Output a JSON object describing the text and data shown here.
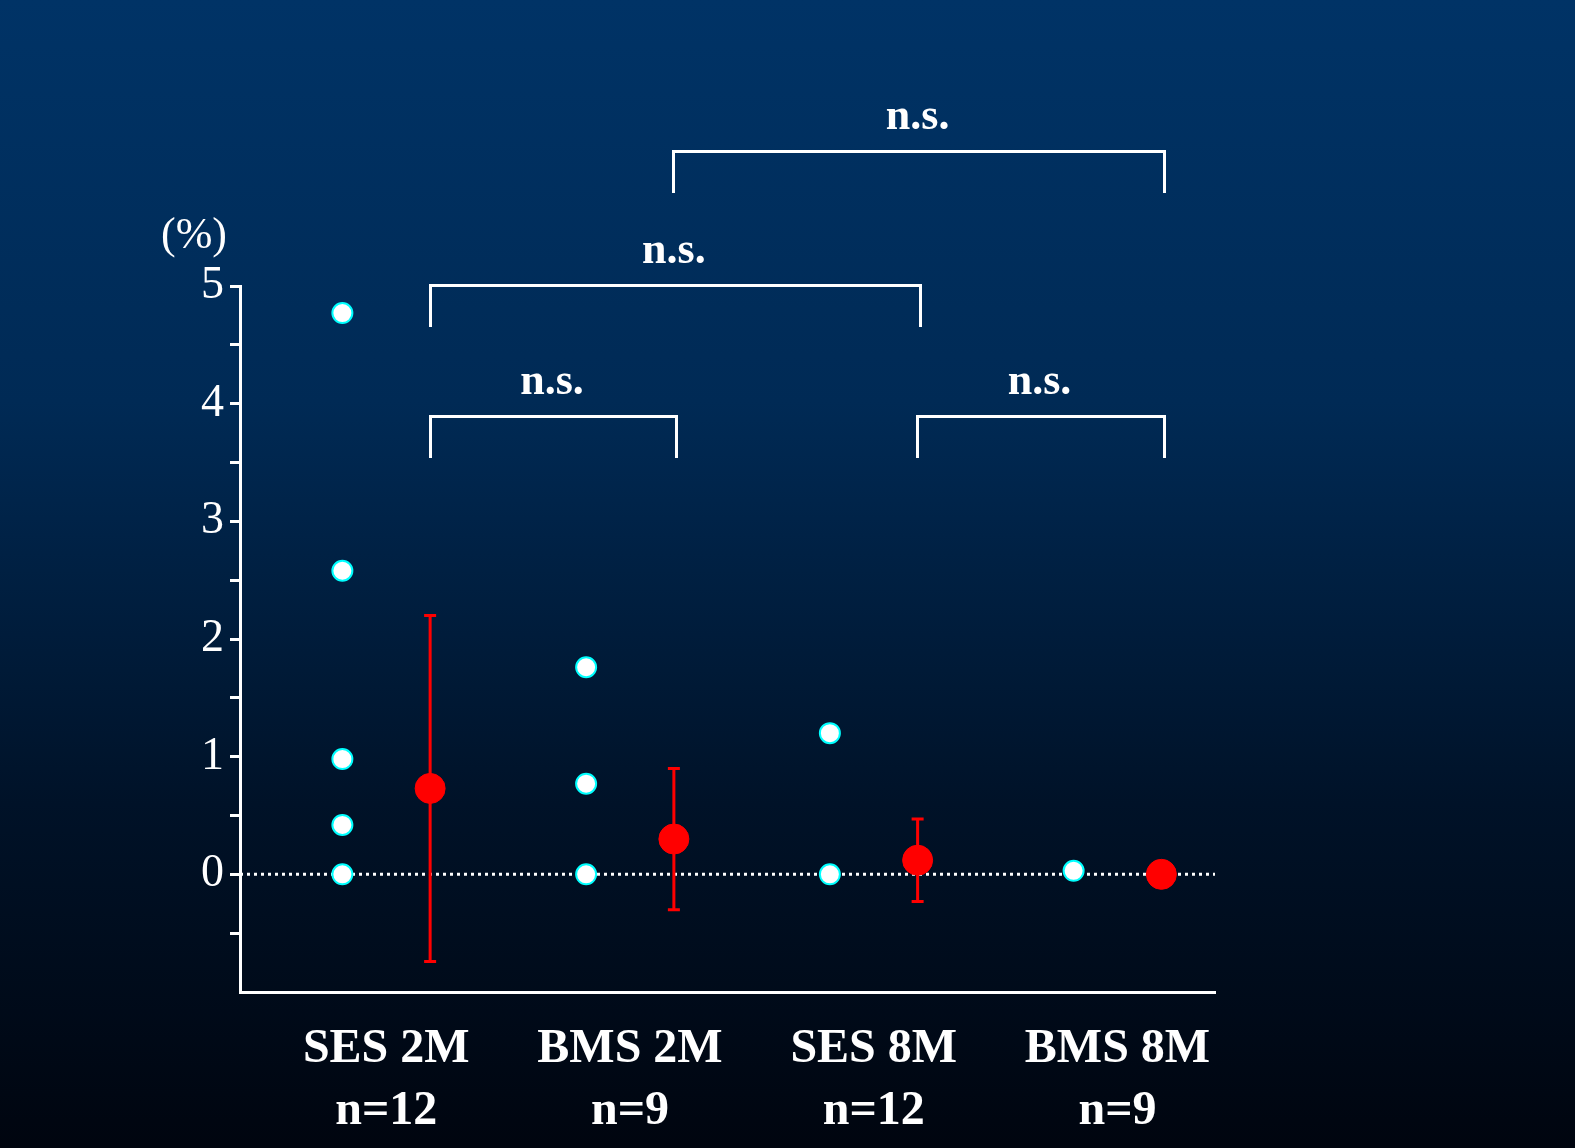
{
  "chart_data": {
    "type": "scatter",
    "ylabel": "(%)",
    "categories": [
      "SES 2M\nn=12",
      "BMS 2M\nn=9",
      "SES 8M\nn=12",
      "BMS 8M\nn=9"
    ],
    "series": [
      {
        "type": "scatter",
        "color": "#ffffff",
        "x": [
          "SES 2M\nn=12",
          "SES 2M\nn=12",
          "SES 2M\nn=12",
          "SES 2M\nn=12",
          "SES 2M\nn=12",
          "BMS 2M\nn=9",
          "BMS 2M\nn=9",
          "BMS 2M\nn=9",
          "SES 8M\nn=12",
          "SES 8M\nn=12",
          "BMS 8M\nn=9"
        ],
        "values": [
          4.77,
          2.58,
          0.98,
          0.42,
          0,
          1.76,
          0.77,
          0,
          1.2,
          0,
          0.03
        ]
      },
      {
        "type": "scatter",
        "color": "#ff0000",
        "x": [
          "SES 2M\nn=12",
          "BMS 2M\nn=9",
          "SES 8M\nn=12",
          "BMS 8M\nn=9"
        ],
        "values": [
          0.73,
          0.3,
          0.12,
          0
        ],
        "errors": [
          1.47,
          0.6,
          0.35,
          null
        ]
      }
    ],
    "ylim": [
      -1,
      5
    ],
    "yticks": [
      {
        "value": -0.5,
        "label": null
      },
      0,
      {
        "value": 0.5,
        "label": null
      },
      1,
      {
        "value": 1.5,
        "label": null
      },
      2,
      {
        "value": 2.5,
        "label": null
      },
      3,
      {
        "value": 3.5,
        "label": null
      },
      4,
      {
        "value": 4.5,
        "label": null
      },
      5
    ],
    "ref_lines": [
      {
        "axis": "y",
        "value": 0,
        "color": "#ffffff",
        "line_style": "dotted"
      }
    ],
    "annotations": [
      "n.s.",
      "n.s.",
      "n.s.",
      "n.s."
    ],
    "grid": false,
    "legend": false,
    "marker": "circle"
  }
}
